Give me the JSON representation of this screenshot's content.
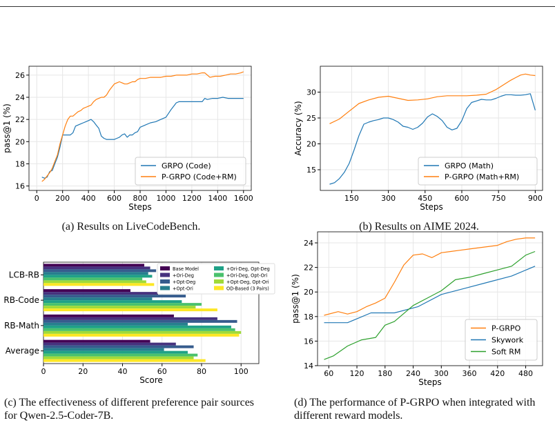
{
  "colors": {
    "blue": "#1f77b4",
    "orange": "#ff7f0e",
    "green": "#2ca02c",
    "viridis": [
      "#440154",
      "#46327e",
      "#365c8d",
      "#277f8e",
      "#1fa187",
      "#4ac16d",
      "#a0da39",
      "#fde725"
    ]
  },
  "captions": {
    "a": "(a) Results on LiveCodeBench.",
    "b": "(b) Results on AIME 2024.",
    "c": "(c) The effectiveness of different preference pair sources for Qwen-2.5-Coder-7B.",
    "d": "(d) The performance of P-GRPO when integrated with different reward models."
  },
  "chart_data": [
    {
      "id": "a",
      "type": "line",
      "xlabel": "Steps",
      "ylabel": "pass@1 (%)",
      "xlim": [
        -60,
        1660
      ],
      "ylim": [
        15.6,
        26.8
      ],
      "xticks": [
        0,
        200,
        400,
        600,
        800,
        1000,
        1200,
        1400,
        1600
      ],
      "yticks": [
        16,
        18,
        20,
        22,
        24,
        26
      ],
      "grid": true,
      "legend_position": "lower-right",
      "series": [
        {
          "name": "GRPO (Code)",
          "color": "#1f77b4",
          "x": [
            40,
            60,
            80,
            100,
            120,
            140,
            160,
            180,
            200,
            220,
            240,
            260,
            280,
            300,
            320,
            340,
            360,
            380,
            400,
            420,
            440,
            460,
            480,
            500,
            520,
            540,
            560,
            580,
            600,
            620,
            640,
            660,
            680,
            700,
            720,
            740,
            760,
            780,
            800,
            840,
            880,
            920,
            960,
            1000,
            1040,
            1080,
            1100,
            1140,
            1180,
            1220,
            1260,
            1280,
            1300,
            1320,
            1360,
            1400,
            1440,
            1480,
            1520,
            1560,
            1600
          ],
          "y": [
            16.8,
            16.7,
            16.8,
            17.3,
            17.4,
            18.0,
            18.6,
            19.5,
            20.6,
            20.6,
            20.6,
            20.6,
            20.8,
            21.4,
            21.5,
            21.6,
            21.7,
            21.8,
            21.9,
            22.0,
            21.8,
            21.5,
            21.2,
            20.5,
            20.3,
            20.2,
            20.2,
            20.2,
            20.2,
            20.3,
            20.4,
            20.6,
            20.7,
            20.4,
            20.6,
            20.6,
            20.8,
            20.9,
            21.3,
            21.5,
            21.7,
            21.8,
            22.0,
            22.2,
            22.9,
            23.5,
            23.6,
            23.6,
            23.6,
            23.6,
            23.6,
            23.6,
            23.9,
            23.8,
            23.9,
            23.9,
            24.0,
            23.9,
            23.9,
            23.9,
            23.9
          ]
        },
        {
          "name": "P-GRPO (Code+RM)",
          "color": "#ff7f0e",
          "x": [
            40,
            60,
            80,
            100,
            120,
            140,
            160,
            180,
            200,
            220,
            240,
            260,
            280,
            300,
            320,
            340,
            360,
            380,
            400,
            420,
            440,
            460,
            480,
            500,
            520,
            540,
            560,
            580,
            600,
            620,
            640,
            660,
            680,
            700,
            720,
            740,
            760,
            780,
            800,
            840,
            880,
            920,
            960,
            1000,
            1040,
            1080,
            1120,
            1160,
            1200,
            1240,
            1280,
            1300,
            1340,
            1380,
            1420,
            1460,
            1500,
            1540,
            1580,
            1600
          ],
          "y": [
            16.4,
            16.6,
            16.9,
            17.2,
            17.6,
            18.2,
            18.8,
            19.8,
            20.6,
            21.4,
            22.0,
            22.3,
            22.3,
            22.5,
            22.7,
            22.8,
            23.0,
            23.1,
            23.2,
            23.3,
            23.6,
            23.8,
            23.9,
            24.0,
            24.0,
            24.2,
            24.6,
            24.9,
            25.2,
            25.3,
            25.4,
            25.3,
            25.2,
            25.2,
            25.3,
            25.4,
            25.4,
            25.6,
            25.7,
            25.7,
            25.8,
            25.8,
            25.8,
            25.9,
            25.9,
            26.0,
            26.0,
            26.0,
            26.1,
            26.1,
            26.2,
            26.2,
            25.8,
            25.9,
            25.9,
            26.0,
            26.1,
            26.1,
            26.2,
            26.3
          ]
        }
      ]
    },
    {
      "id": "b",
      "type": "line",
      "xlabel": "Steps",
      "ylabel": "Accuracy (%)",
      "xlim": [
        22,
        930
      ],
      "ylim": [
        11.0,
        35.0
      ],
      "xticks": [
        150,
        300,
        450,
        600,
        750,
        900
      ],
      "yticks": [
        15,
        20,
        25,
        30
      ],
      "grid": true,
      "legend_position": "lower-right",
      "series": [
        {
          "name": "GRPO (Math)",
          "color": "#1f77b4",
          "x": [
            60,
            80,
            100,
            120,
            140,
            160,
            180,
            200,
            220,
            240,
            260,
            280,
            300,
            320,
            340,
            360,
            380,
            400,
            420,
            440,
            460,
            480,
            500,
            520,
            540,
            560,
            580,
            600,
            620,
            640,
            660,
            680,
            700,
            720,
            740,
            760,
            780,
            800,
            820,
            840,
            860,
            880,
            900
          ],
          "y": [
            12.2,
            12.5,
            13.3,
            14.5,
            16.2,
            18.8,
            21.6,
            23.8,
            24.2,
            24.5,
            24.7,
            25.0,
            25.0,
            24.7,
            24.2,
            23.4,
            23.2,
            22.8,
            23.2,
            24.0,
            25.2,
            25.8,
            25.3,
            24.5,
            23.2,
            22.7,
            23.0,
            24.5,
            26.8,
            28.0,
            28.3,
            28.6,
            28.5,
            28.5,
            28.8,
            29.2,
            29.5,
            29.5,
            29.4,
            29.4,
            29.5,
            29.7,
            26.5
          ]
        },
        {
          "name": "P-GRPO (Math+RM)",
          "color": "#ff7f0e",
          "x": [
            60,
            100,
            140,
            180,
            220,
            260,
            300,
            340,
            380,
            420,
            460,
            500,
            540,
            580,
            620,
            660,
            700,
            740,
            780,
            800,
            820,
            840,
            860,
            880,
            900
          ],
          "y": [
            23.9,
            24.8,
            26.3,
            27.8,
            28.5,
            29.0,
            29.2,
            28.8,
            28.4,
            28.5,
            28.7,
            29.1,
            29.3,
            29.3,
            29.3,
            29.4,
            29.6,
            30.5,
            31.7,
            32.3,
            32.8,
            33.3,
            33.5,
            33.3,
            33.2
          ]
        }
      ]
    },
    {
      "id": "c",
      "type": "bar",
      "orientation": "horizontal",
      "xlabel": "Score",
      "xlim": [
        0,
        109
      ],
      "xticks": [
        0,
        20,
        40,
        60,
        80,
        100
      ],
      "categories": [
        "LCB-RB",
        "RB-Code",
        "RB-Math",
        "Average"
      ],
      "grid": true,
      "legend_position": "top-right",
      "series": [
        {
          "name": "Base Model",
          "color": "#440154",
          "values": [
            51,
            44,
            66,
            54
          ]
        },
        {
          "name": "+Ori-Deg",
          "color": "#46327e",
          "values": [
            54,
            58,
            88,
            67
          ]
        },
        {
          "name": "+Opt-Deg",
          "color": "#365c8d",
          "values": [
            57,
            72,
            98,
            76
          ]
        },
        {
          "name": "+Opt-Ori",
          "color": "#277f8e",
          "values": [
            53,
            55,
            73,
            61
          ]
        },
        {
          "name": "+Ori-Deg, Opt-Deg",
          "color": "#1fa187",
          "values": [
            55,
            70,
            95,
            73
          ]
        },
        {
          "name": "+Ori-Deg, Opt-Ori",
          "color": "#4ac16d",
          "values": [
            50,
            80,
            97,
            78
          ]
        },
        {
          "name": "+Opt-Deg, Opt-Ori",
          "color": "#a0da39",
          "values": [
            52,
            77,
            100,
            76
          ]
        },
        {
          "name": "OD-Based (3 Pairs)",
          "color": "#fde725",
          "values": [
            56,
            88,
            99,
            82
          ]
        }
      ]
    },
    {
      "id": "d",
      "type": "line",
      "xlabel": "Steps",
      "ylabel": "pass@1 (%)",
      "xlim": [
        36,
        516
      ],
      "ylim": [
        14.0,
        24.9
      ],
      "xticks": [
        60,
        120,
        180,
        240,
        300,
        360,
        420,
        480
      ],
      "yticks": [
        14,
        16,
        18,
        20,
        22,
        24
      ],
      "grid": true,
      "legend_position": "lower-right",
      "series": [
        {
          "name": "P-GRPO",
          "color": "#ff7f0e",
          "x": [
            50,
            80,
            100,
            120,
            140,
            160,
            180,
            200,
            220,
            240,
            260,
            280,
            300,
            320,
            340,
            360,
            380,
            400,
            420,
            440,
            460,
            480,
            500
          ],
          "y": [
            18.1,
            18.4,
            18.2,
            18.4,
            18.8,
            19.1,
            19.5,
            20.8,
            22.2,
            23.0,
            23.1,
            22.8,
            23.2,
            23.3,
            23.4,
            23.5,
            23.6,
            23.7,
            23.8,
            24.1,
            24.3,
            24.4,
            24.4
          ]
        },
        {
          "name": "Skywork",
          "color": "#1f77b4",
          "x": [
            50,
            100,
            150,
            200,
            250,
            300,
            350,
            400,
            450,
            500
          ],
          "y": [
            17.5,
            17.5,
            18.3,
            18.3,
            18.8,
            19.8,
            20.3,
            20.8,
            21.3,
            22.1
          ]
        },
        {
          "name": "Soft RM",
          "color": "#2ca02c",
          "x": [
            50,
            70,
            100,
            130,
            160,
            180,
            200,
            240,
            270,
            300,
            330,
            360,
            390,
            420,
            450,
            480,
            500
          ],
          "y": [
            14.5,
            14.8,
            15.6,
            16.1,
            16.3,
            17.3,
            17.6,
            18.9,
            19.5,
            20.1,
            21.0,
            21.2,
            21.5,
            21.8,
            22.1,
            23.0,
            23.3
          ]
        }
      ]
    }
  ]
}
